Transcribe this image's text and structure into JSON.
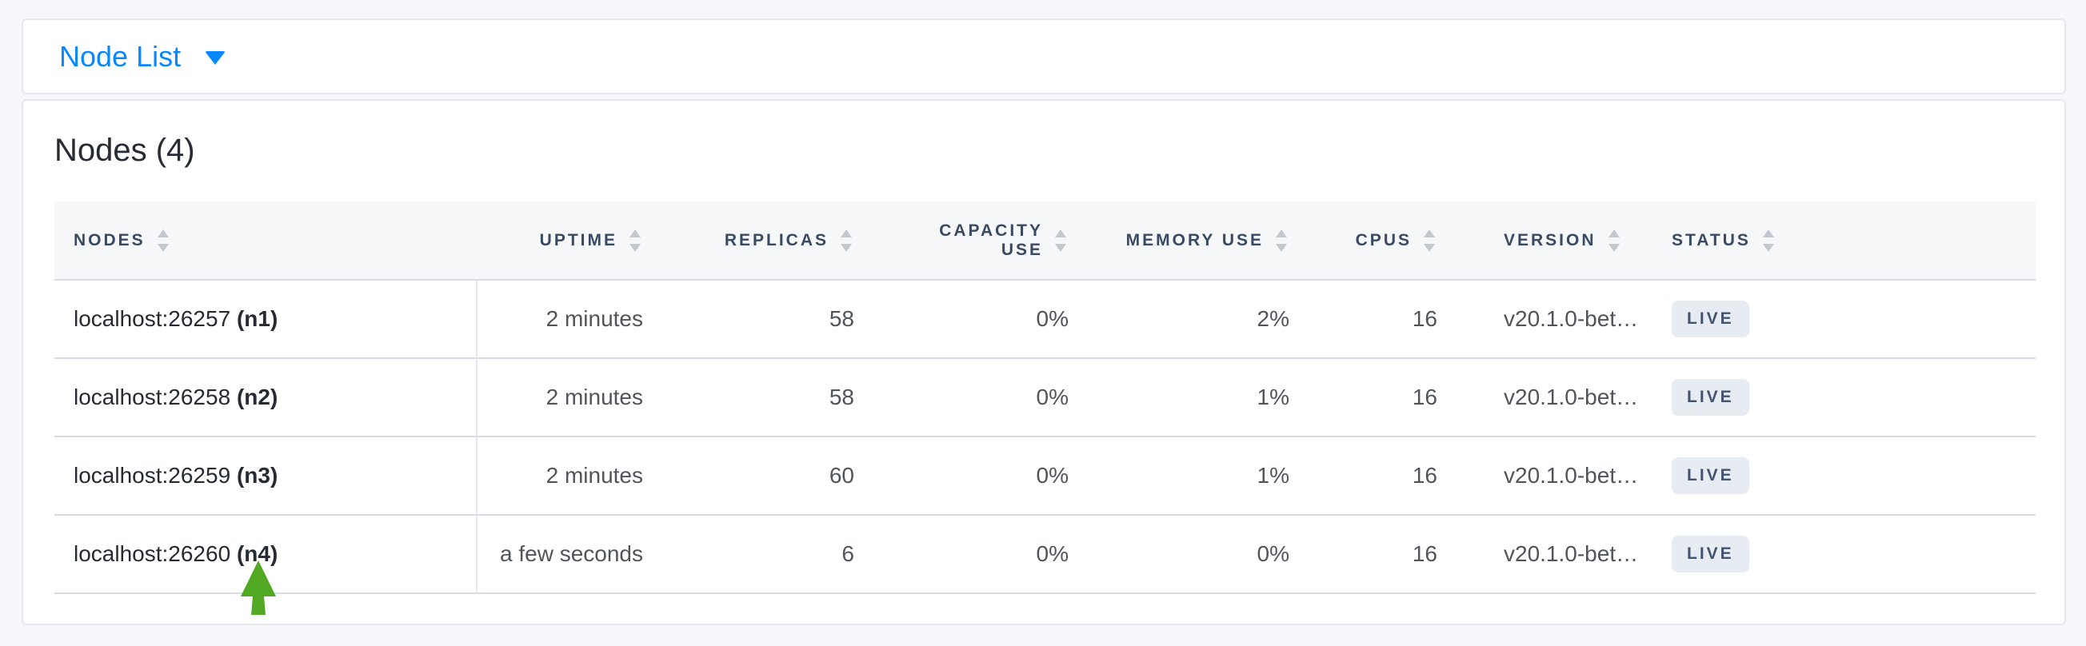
{
  "view_selector": {
    "label": "Node List"
  },
  "summary": {
    "title": "Nodes (4)"
  },
  "table": {
    "columns": [
      {
        "key": "nodes",
        "label": "NODES",
        "align": "left"
      },
      {
        "key": "uptime",
        "label": "UPTIME",
        "align": "right"
      },
      {
        "key": "replicas",
        "label": "REPLICAS",
        "align": "right"
      },
      {
        "key": "capacity_use",
        "label": "CAPACITY USE",
        "align": "right"
      },
      {
        "key": "memory_use",
        "label": "MEMORY USE",
        "align": "right"
      },
      {
        "key": "cpus",
        "label": "CPUS",
        "align": "right"
      },
      {
        "key": "version",
        "label": "VERSION",
        "align": "left"
      },
      {
        "key": "status",
        "label": "STATUS",
        "align": "left"
      }
    ],
    "rows": [
      {
        "address": "localhost:26257",
        "node_id": "(n1)",
        "uptime": "2 minutes",
        "replicas": "58",
        "capacity_use": "0%",
        "memory_use": "2%",
        "cpus": "16",
        "version": "v20.1.0-bet…",
        "status": "LIVE"
      },
      {
        "address": "localhost:26258",
        "node_id": "(n2)",
        "uptime": "2 minutes",
        "replicas": "58",
        "capacity_use": "0%",
        "memory_use": "1%",
        "cpus": "16",
        "version": "v20.1.0-bet…",
        "status": "LIVE"
      },
      {
        "address": "localhost:26259",
        "node_id": "(n3)",
        "uptime": "2 minutes",
        "replicas": "60",
        "capacity_use": "0%",
        "memory_use": "1%",
        "cpus": "16",
        "version": "v20.1.0-bet…",
        "status": "LIVE"
      },
      {
        "address": "localhost:26260",
        "node_id": "(n4)",
        "uptime": "a few seconds",
        "replicas": "6",
        "capacity_use": "0%",
        "memory_use": "0%",
        "cpus": "16",
        "version": "v20.1.0-bet…",
        "status": "LIVE"
      }
    ]
  },
  "annotation": {
    "icon": "arrow-up",
    "arrow_color": "#50a823"
  },
  "colors": {
    "accent_blue": "#0788ff",
    "arrow_green": "#50a823",
    "badge_background": "#e7ebf2",
    "badge_text": "#44536f",
    "header_text": "#394a63",
    "page_background": "#f5f7fa"
  }
}
